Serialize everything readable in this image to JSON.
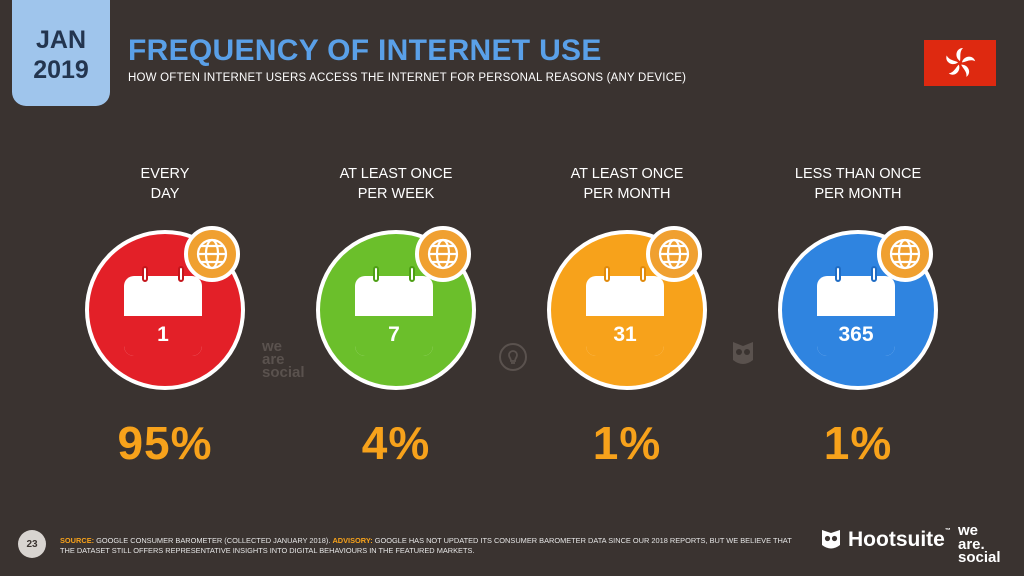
{
  "date": {
    "month": "JAN",
    "year": "2019"
  },
  "title": "FREQUENCY OF INTERNET USE",
  "subtitle": "HOW OFTEN INTERNET USERS ACCESS THE INTERNET FOR PERSONAL REASONS (ANY DEVICE)",
  "columns": [
    {
      "label": "EVERY\nDAY",
      "number": "1",
      "percent": "95%",
      "color": "#e32028",
      "dark": "#c4161c"
    },
    {
      "label": "AT LEAST ONCE\nPER WEEK",
      "number": "7",
      "percent": "4%",
      "color": "#6bbf2b",
      "dark": "#4e9f16"
    },
    {
      "label": "AT LEAST ONCE\nPER MONTH",
      "number": "31",
      "percent": "1%",
      "color": "#f7a21b",
      "dark": "#e08a0c"
    },
    {
      "label": "LESS THAN ONCE\nPER MONTH",
      "number": "365",
      "percent": "1%",
      "color": "#2f84e0",
      "dark": "#1f6cc4"
    }
  ],
  "watermark": {
    "line1": "we",
    "line2": "are",
    "line3": "social"
  },
  "footer": {
    "page": "23",
    "source_label": "SOURCE:",
    "source_text": " GOOGLE CONSUMER BAROMETER (COLLECTED JANUARY 2018). ",
    "advisory_label": "ADVISORY:",
    "advisory_text": " GOOGLE HAS NOT UPDATED ITS CONSUMER BAROMETER DATA SINCE OUR 2018 REPORTS, BUT WE BELIEVE THAT THE DATASET STILL OFFERS REPRESENTATIVE INSIGHTS INTO DIGITAL BEHAVIOURS IN THE FEATURED MARKETS."
  },
  "brand": {
    "hootsuite": "Hootsuite",
    "tm": "™",
    "was1": "we",
    "was2": "are.",
    "was3": "social"
  },
  "colors": {
    "background": "#3a3330",
    "title": "#5aa0e8",
    "accent": "#f7a21b",
    "flag": "#de2910"
  },
  "icons": {
    "badge": "globe-icon",
    "calendar": "calendar-icon",
    "flag": "hong-kong-flag",
    "bulb": "lightbulb-icon",
    "owl": "owl-icon"
  }
}
